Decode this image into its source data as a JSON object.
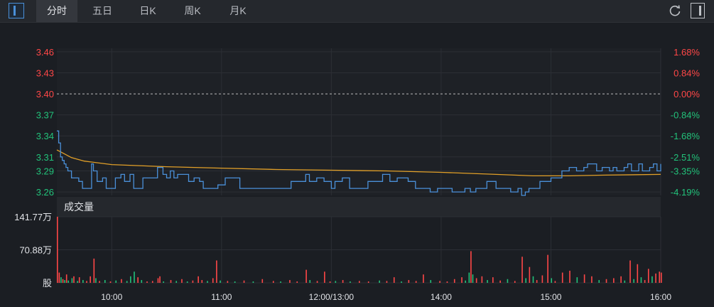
{
  "toolbar": {
    "tabs": [
      {
        "label": "分时",
        "active": true
      },
      {
        "label": "五日",
        "active": false
      },
      {
        "label": "日K",
        "active": false
      },
      {
        "label": "周K",
        "active": false
      },
      {
        "label": "月K",
        "active": false
      }
    ],
    "icons": {
      "sidebar": "sidebar-toggle-icon",
      "refresh": "refresh-icon",
      "panel": "panel-toggle-icon"
    }
  },
  "colors": {
    "up": "#ff4747",
    "down": "#22c27a",
    "price_line": "#4a90d9",
    "avg_line": "#e2a028",
    "grid": "#2c2f35",
    "baseline": "#bbbbbb"
  },
  "chart_data": [
    {
      "type": "line",
      "name": "price",
      "y_ticks": [
        "3.46",
        "3.43",
        "3.40",
        "3.37",
        "3.34",
        "3.31",
        "3.29",
        "3.26"
      ],
      "y_tick_values": [
        3.46,
        3.43,
        3.4,
        3.37,
        3.34,
        3.31,
        3.29,
        3.26
      ],
      "pct_ticks": [
        "1.68%",
        "0.84%",
        "0.00%",
        "-0.84%",
        "-1.68%",
        "-2.51%",
        "-3.35%",
        "-4.19%"
      ],
      "prev_close": 3.4,
      "ylim": [
        3.255,
        3.465
      ],
      "x_ticks": [
        "10:00",
        "11:00",
        "12:00/13:00",
        "14:00",
        "15:00",
        "16:00"
      ],
      "x_tick_minutes": [
        30,
        90,
        150,
        210,
        270,
        330
      ],
      "xlim": [
        0,
        330
      ],
      "grid": true,
      "series": [
        {
          "key": "price",
          "points": [
            [
              0,
              3.347
            ],
            [
              1,
              3.33
            ],
            [
              2,
              3.31
            ],
            [
              3,
              3.305
            ],
            [
              4,
              3.3
            ],
            [
              5,
              3.295
            ],
            [
              6,
              3.29
            ],
            [
              8,
              3.28
            ],
            [
              10,
              3.28
            ],
            [
              12,
              3.275
            ],
            [
              14,
              3.265
            ],
            [
              16,
              3.265
            ],
            [
              18,
              3.265
            ],
            [
              19,
              3.3
            ],
            [
              20,
              3.29
            ],
            [
              22,
              3.275
            ],
            [
              25,
              3.28
            ],
            [
              27,
              3.265
            ],
            [
              30,
              3.265
            ],
            [
              32,
              3.28
            ],
            [
              35,
              3.285
            ],
            [
              37,
              3.275
            ],
            [
              40,
              3.285
            ],
            [
              42,
              3.265
            ],
            [
              45,
              3.265
            ],
            [
              47,
              3.28
            ],
            [
              50,
              3.28
            ],
            [
              55,
              3.295
            ],
            [
              56,
              3.295
            ],
            [
              58,
              3.285
            ],
            [
              60,
              3.28
            ],
            [
              62,
              3.29
            ],
            [
              64,
              3.28
            ],
            [
              66,
              3.285
            ],
            [
              70,
              3.285
            ],
            [
              72,
              3.275
            ],
            [
              75,
              3.28
            ],
            [
              78,
              3.275
            ],
            [
              80,
              3.265
            ],
            [
              85,
              3.265
            ],
            [
              88,
              3.27
            ],
            [
              92,
              3.28
            ],
            [
              96,
              3.28
            ],
            [
              100,
              3.265
            ],
            [
              108,
              3.265
            ],
            [
              112,
              3.265
            ],
            [
              118,
              3.265
            ],
            [
              124,
              3.265
            ],
            [
              128,
              3.275
            ],
            [
              132,
              3.275
            ],
            [
              136,
              3.285
            ],
            [
              138,
              3.275
            ],
            [
              142,
              3.28
            ],
            [
              146,
              3.275
            ],
            [
              150,
              3.265
            ],
            [
              152,
              3.275
            ],
            [
              156,
              3.28
            ],
            [
              160,
              3.265
            ],
            [
              166,
              3.265
            ],
            [
              170,
              3.275
            ],
            [
              175,
              3.275
            ],
            [
              178,
              3.285
            ],
            [
              182,
              3.275
            ],
            [
              186,
              3.28
            ],
            [
              190,
              3.28
            ],
            [
              192,
              3.275
            ],
            [
              196,
              3.265
            ],
            [
              200,
              3.265
            ],
            [
              204,
              3.26
            ],
            [
              208,
              3.265
            ],
            [
              212,
              3.265
            ],
            [
              216,
              3.26
            ],
            [
              220,
              3.26
            ],
            [
              223,
              3.265
            ],
            [
              226,
              3.26
            ],
            [
              229,
              3.265
            ],
            [
              232,
              3.265
            ],
            [
              235,
              3.275
            ],
            [
              240,
              3.265
            ],
            [
              244,
              3.265
            ],
            [
              248,
              3.26
            ],
            [
              252,
              3.265
            ],
            [
              254,
              3.255
            ],
            [
              256,
              3.26
            ],
            [
              258,
              3.265
            ],
            [
              262,
              3.265
            ],
            [
              264,
              3.275
            ],
            [
              268,
              3.275
            ],
            [
              270,
              3.28
            ],
            [
              273,
              3.28
            ],
            [
              276,
              3.29
            ],
            [
              280,
              3.295
            ],
            [
              284,
              3.29
            ],
            [
              288,
              3.295
            ],
            [
              290,
              3.3
            ],
            [
              292,
              3.3
            ],
            [
              295,
              3.29
            ],
            [
              298,
              3.295
            ],
            [
              302,
              3.29
            ],
            [
              304,
              3.295
            ],
            [
              306,
              3.29
            ],
            [
              310,
              3.295
            ],
            [
              312,
              3.3
            ],
            [
              314,
              3.29
            ],
            [
              318,
              3.3
            ],
            [
              320,
              3.29
            ],
            [
              324,
              3.295
            ],
            [
              326,
              3.3
            ],
            [
              328,
              3.29
            ],
            [
              330,
              3.3
            ]
          ]
        },
        {
          "key": "avg",
          "points": [
            [
              0,
              3.32
            ],
            [
              3,
              3.316
            ],
            [
              8,
              3.309
            ],
            [
              15,
              3.304
            ],
            [
              30,
              3.299
            ],
            [
              60,
              3.296
            ],
            [
              90,
              3.294
            ],
            [
              120,
              3.292
            ],
            [
              150,
              3.291
            ],
            [
              180,
              3.29
            ],
            [
              210,
              3.288
            ],
            [
              240,
              3.285
            ],
            [
              260,
              3.283
            ],
            [
              280,
              3.283
            ],
            [
              300,
              3.284
            ],
            [
              330,
              3.285
            ]
          ]
        }
      ]
    },
    {
      "type": "bar",
      "name": "volume",
      "title": "成交量",
      "y_ticks": [
        "141.77万",
        "70.88万",
        "股"
      ],
      "y_tick_values": [
        141.77,
        70.88,
        0
      ],
      "ylim": [
        0,
        141.77
      ],
      "bars": [
        {
          "x": 0,
          "v": 141.77,
          "up": true
        },
        {
          "x": 1,
          "v": 22,
          "up": true
        },
        {
          "x": 2,
          "v": 12,
          "up": false
        },
        {
          "x": 3,
          "v": 8,
          "up": true
        },
        {
          "x": 4,
          "v": 6,
          "up": false
        },
        {
          "x": 5,
          "v": 18,
          "up": true
        },
        {
          "x": 6,
          "v": 5,
          "up": false
        },
        {
          "x": 8,
          "v": 10,
          "up": false
        },
        {
          "x": 9,
          "v": 14,
          "up": true
        },
        {
          "x": 11,
          "v": 4,
          "up": false
        },
        {
          "x": 12,
          "v": 12,
          "up": true
        },
        {
          "x": 14,
          "v": 6,
          "up": false
        },
        {
          "x": 16,
          "v": 4,
          "up": true
        },
        {
          "x": 18,
          "v": 14,
          "up": true
        },
        {
          "x": 20,
          "v": 52,
          "up": true
        },
        {
          "x": 21,
          "v": 10,
          "up": false
        },
        {
          "x": 23,
          "v": 4,
          "up": true
        },
        {
          "x": 26,
          "v": 6,
          "up": false
        },
        {
          "x": 29,
          "v": 3,
          "up": true
        },
        {
          "x": 32,
          "v": 5,
          "up": false
        },
        {
          "x": 35,
          "v": 8,
          "up": true
        },
        {
          "x": 38,
          "v": 4,
          "up": false
        },
        {
          "x": 40,
          "v": 14,
          "up": false
        },
        {
          "x": 42,
          "v": 24,
          "up": false
        },
        {
          "x": 44,
          "v": 12,
          "up": true
        },
        {
          "x": 46,
          "v": 6,
          "up": false
        },
        {
          "x": 49,
          "v": 3,
          "up": true
        },
        {
          "x": 52,
          "v": 4,
          "up": true
        },
        {
          "x": 55,
          "v": 10,
          "up": true
        },
        {
          "x": 56,
          "v": 14,
          "up": true
        },
        {
          "x": 58,
          "v": 3,
          "up": false
        },
        {
          "x": 62,
          "v": 6,
          "up": true
        },
        {
          "x": 65,
          "v": 4,
          "up": false
        },
        {
          "x": 68,
          "v": 8,
          "up": true
        },
        {
          "x": 71,
          "v": 3,
          "up": false
        },
        {
          "x": 74,
          "v": 5,
          "up": true
        },
        {
          "x": 77,
          "v": 14,
          "up": true
        },
        {
          "x": 79,
          "v": 6,
          "up": true
        },
        {
          "x": 82,
          "v": 4,
          "up": false
        },
        {
          "x": 85,
          "v": 10,
          "up": true
        },
        {
          "x": 87,
          "v": 48,
          "up": true
        },
        {
          "x": 89,
          "v": 5,
          "up": false
        },
        {
          "x": 93,
          "v": 4,
          "up": true
        },
        {
          "x": 97,
          "v": 3,
          "up": false
        },
        {
          "x": 102,
          "v": 5,
          "up": true
        },
        {
          "x": 107,
          "v": 3,
          "up": false
        },
        {
          "x": 112,
          "v": 8,
          "up": true
        },
        {
          "x": 118,
          "v": 4,
          "up": true
        },
        {
          "x": 122,
          "v": 3,
          "up": false
        },
        {
          "x": 127,
          "v": 6,
          "up": true
        },
        {
          "x": 131,
          "v": 3,
          "up": true
        },
        {
          "x": 136,
          "v": 28,
          "up": true
        },
        {
          "x": 138,
          "v": 6,
          "up": false
        },
        {
          "x": 142,
          "v": 4,
          "up": true
        },
        {
          "x": 146,
          "v": 24,
          "up": true
        },
        {
          "x": 149,
          "v": 3,
          "up": true
        },
        {
          "x": 152,
          "v": 4,
          "up": false
        },
        {
          "x": 156,
          "v": 6,
          "up": true
        },
        {
          "x": 160,
          "v": 3,
          "up": false
        },
        {
          "x": 165,
          "v": 4,
          "up": true
        },
        {
          "x": 170,
          "v": 3,
          "up": true
        },
        {
          "x": 176,
          "v": 5,
          "up": false
        },
        {
          "x": 180,
          "v": 4,
          "up": true
        },
        {
          "x": 184,
          "v": 12,
          "up": true
        },
        {
          "x": 188,
          "v": 3,
          "up": false
        },
        {
          "x": 192,
          "v": 6,
          "up": true
        },
        {
          "x": 196,
          "v": 4,
          "up": true
        },
        {
          "x": 200,
          "v": 18,
          "up": true
        },
        {
          "x": 204,
          "v": 6,
          "up": false
        },
        {
          "x": 209,
          "v": 4,
          "up": true
        },
        {
          "x": 213,
          "v": 3,
          "up": true
        },
        {
          "x": 217,
          "v": 8,
          "up": true
        },
        {
          "x": 221,
          "v": 12,
          "up": true
        },
        {
          "x": 223,
          "v": 5,
          "up": false
        },
        {
          "x": 225,
          "v": 22,
          "up": false
        },
        {
          "x": 226,
          "v": 68,
          "up": true
        },
        {
          "x": 227,
          "v": 18,
          "up": false
        },
        {
          "x": 229,
          "v": 10,
          "up": true
        },
        {
          "x": 232,
          "v": 14,
          "up": true
        },
        {
          "x": 235,
          "v": 6,
          "up": false
        },
        {
          "x": 238,
          "v": 12,
          "up": true
        },
        {
          "x": 242,
          "v": 5,
          "up": true
        },
        {
          "x": 246,
          "v": 8,
          "up": false
        },
        {
          "x": 250,
          "v": 4,
          "up": true
        },
        {
          "x": 254,
          "v": 56,
          "up": true
        },
        {
          "x": 256,
          "v": 10,
          "up": false
        },
        {
          "x": 258,
          "v": 34,
          "up": true
        },
        {
          "x": 260,
          "v": 14,
          "up": false
        },
        {
          "x": 262,
          "v": 6,
          "up": true
        },
        {
          "x": 265,
          "v": 16,
          "up": true
        },
        {
          "x": 268,
          "v": 60,
          "up": true
        },
        {
          "x": 270,
          "v": 10,
          "up": false
        },
        {
          "x": 272,
          "v": 4,
          "up": true
        },
        {
          "x": 276,
          "v": 22,
          "up": true
        },
        {
          "x": 280,
          "v": 26,
          "up": true
        },
        {
          "x": 284,
          "v": 12,
          "up": false
        },
        {
          "x": 288,
          "v": 18,
          "up": true
        },
        {
          "x": 292,
          "v": 14,
          "up": true
        },
        {
          "x": 296,
          "v": 6,
          "up": false
        },
        {
          "x": 300,
          "v": 8,
          "up": true
        },
        {
          "x": 304,
          "v": 10,
          "up": true
        },
        {
          "x": 308,
          "v": 14,
          "up": true
        },
        {
          "x": 310,
          "v": 5,
          "up": false
        },
        {
          "x": 313,
          "v": 48,
          "up": true
        },
        {
          "x": 315,
          "v": 8,
          "up": false
        },
        {
          "x": 317,
          "v": 40,
          "up": true
        },
        {
          "x": 319,
          "v": 12,
          "up": false
        },
        {
          "x": 321,
          "v": 6,
          "up": true
        },
        {
          "x": 323,
          "v": 30,
          "up": true
        },
        {
          "x": 325,
          "v": 14,
          "up": false
        },
        {
          "x": 327,
          "v": 20,
          "up": true
        },
        {
          "x": 329,
          "v": 24,
          "up": true
        },
        {
          "x": 330,
          "v": 22,
          "up": true
        }
      ]
    }
  ]
}
